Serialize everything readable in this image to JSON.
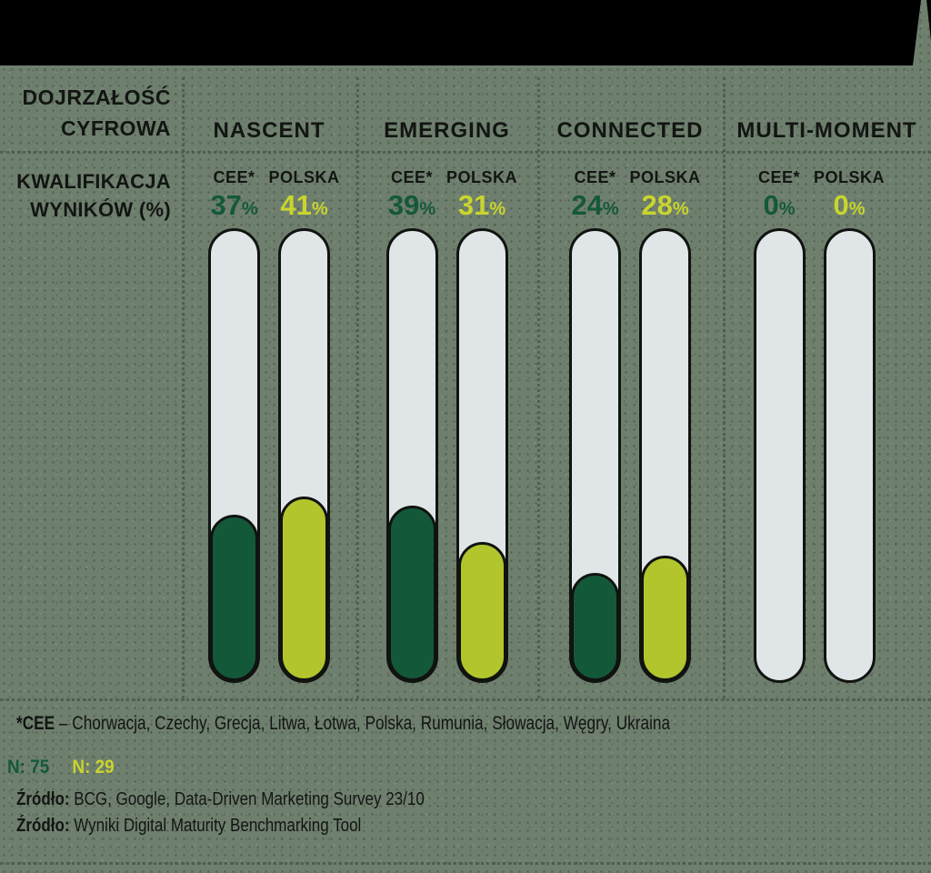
{
  "percent_sign": "%",
  "header": {
    "maturity_line1": "DOJRZAŁOŚĆ",
    "maturity_line2": "CYFROWA",
    "qualification_line1": "KWALIFIKACJA",
    "qualification_line2": "WYNIKÓW (%)"
  },
  "chart_data": {
    "type": "bar",
    "orientation": "vertical",
    "title": "DOJRZAŁOŚĆ CYFROWA",
    "row_label": "KWALIFIKACJA WYNIKÓW (%)",
    "unit": "%",
    "ylim": [
      0,
      100
    ],
    "grid": "dotted column dividers",
    "categories": [
      "NASCENT",
      "EMERGING",
      "CONNECTED",
      "MULTI-MOMENT"
    ],
    "series": [
      {
        "name": "CEE*",
        "values": [
          37,
          39,
          24,
          0
        ],
        "color": "#14583a",
        "n": 75
      },
      {
        "name": "POLSKA",
        "values": [
          41,
          31,
          28,
          0
        ],
        "color": "#b2c52d",
        "n": 29
      }
    ]
  },
  "colors": {
    "background": "#6f7f6e",
    "banner": "#000000",
    "cee_green": "#14583a",
    "polska_lime_fill": "#b2c52d",
    "polska_lime_text": "#c9d52e",
    "tube_gray": "#e0e5e7",
    "outline_black": "#101310",
    "text_black": "#121512"
  },
  "footer": {
    "footnote_bold": "*CEE",
    "footnote_rest": " – Chorwacja, Czechy, Grecja, Litwa, Łotwa, Polska, Rumunia, Słowacja, Węgry, Ukraina",
    "n_cee": "N: 75",
    "n_polska": "N: 29",
    "source1_bold": "Źródło:",
    "source1_rest": " BCG, Google, Data-Driven Marketing Survey 23/10",
    "source2_bold": "Źródło:",
    "source2_rest": " Wyniki Digital Maturity Benchmarking Tool"
  }
}
